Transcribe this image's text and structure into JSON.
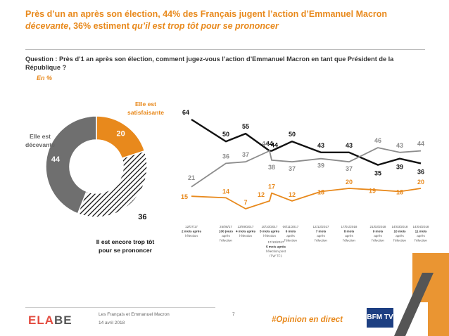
{
  "title": {
    "part1": "Près d’un an après son élection, 44% des Français jugent l’action d’Emmanuel Macron",
    "part2_italic": "décevante",
    "part3": ", 36% estiment",
    "part4_italic": "qu’il est trop tôt pour se prononcer"
  },
  "question": "Question : Près d’1 an après son élection, comment jugez-vous l’action d’Emmanuel Macron en tant que Président de la République ?",
  "unit": "En  %",
  "colors": {
    "accent": "#e8891c",
    "black": "#111111",
    "gray": "#8c8c8c",
    "darkgray": "#666666"
  },
  "chart_data": [
    {
      "type": "pie",
      "labels": [
        "Elle est satisfaisante",
        "Il est encore trop tôt pour se prononcer",
        "Elle est décevante"
      ],
      "values": [
        20,
        36,
        44
      ],
      "label_lines": [
        [
          "Elle est",
          "satisfaisante"
        ],
        [
          "Il est encore trop tôt",
          "pour se prononcer"
        ],
        [
          "Elle est",
          "décevante"
        ]
      ]
    },
    {
      "type": "line",
      "categories": [
        [
          "12/07/17",
          "2 mois après",
          "l’élection"
        ],
        [
          "25/08/17",
          "100 jours",
          "après",
          "l’élection"
        ],
        [
          "13/09/2017",
          "4 mois après",
          "l’élection"
        ],
        [
          "10/10/2017",
          "5 mois après",
          "l’élection"
        ],
        [
          "17/10/2017",
          "5 mois après",
          "l’élection post",
          "ITW TF1"
        ],
        [
          "06/11/2017",
          "6 mois",
          "après",
          "l’élection"
        ],
        [
          "12/12/2017",
          "7 mois",
          "après",
          "l’élection"
        ],
        [
          "17/01/2018",
          "8 mois",
          "après",
          "l’élection"
        ],
        [
          "21/02/2018",
          "9 mois",
          "après",
          "l’élection"
        ],
        [
          "14/03/2018",
          "10 mois",
          "après",
          "l’élection"
        ],
        [
          "14/04/2018",
          "11 mois",
          "après",
          "l’élection"
        ]
      ],
      "series": [
        {
          "values": [
            64,
            50,
            55,
            44,
            44,
            50,
            43,
            43,
            35,
            39,
            36
          ]
        },
        {
          "values": [
            21,
            36,
            37,
            44,
            38,
            37,
            39,
            37,
            46,
            43,
            44
          ]
        },
        {
          "values": [
            15,
            14,
            7,
            12,
            17,
            12,
            18,
            20,
            19,
            18,
            20
          ]
        }
      ]
    }
  ],
  "footer": {
    "logo_a": "ELA",
    "logo_b": "BE",
    "line1": "Les Français et Emmanuel Macron",
    "line2": "14 avril 2018",
    "page": "7",
    "hashtag": "#Opinion en direct",
    "tv_logo": "BFM TV"
  }
}
